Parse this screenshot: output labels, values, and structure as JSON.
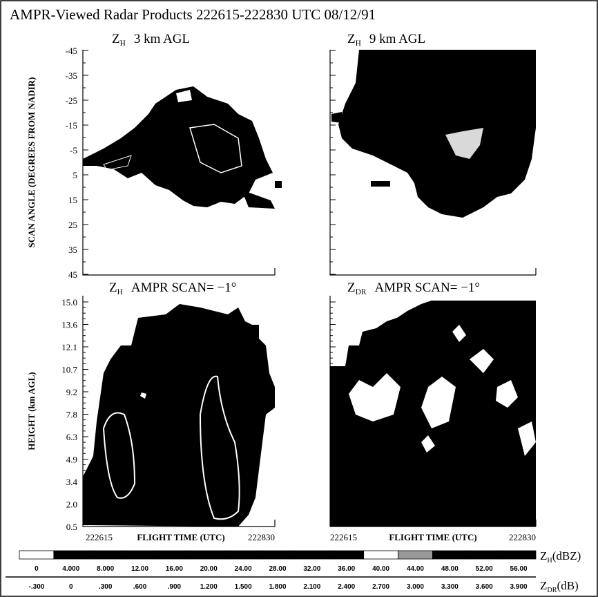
{
  "title": "AMPR-Viewed Radar Products  222615-222830 UTC  08/12/91",
  "panels": [
    {
      "symbol": "Z",
      "subscript": "H",
      "text": "3 km AGL"
    },
    {
      "symbol": "Z",
      "subscript": "H",
      "text": "9 km AGL"
    },
    {
      "symbol": "Z",
      "subscript": "H",
      "text": "AMPR SCAN= −1°"
    },
    {
      "symbol": "Z",
      "subscript": "DR",
      "text": "AMPR SCAN= −1°"
    }
  ],
  "scan_axis": {
    "label": "SCAN ANGLE  (DEGREES FROM NADIR)",
    "ticks": [
      "-45",
      "-35",
      "-25",
      "-15",
      "-5",
      "5",
      "15",
      "25",
      "35",
      "45"
    ]
  },
  "height_axis": {
    "label": "HEIGHT  (km AGL)",
    "ticks": [
      "15.0",
      "13.6",
      "12.1",
      "10.7",
      "9.2",
      "7.8",
      "6.3",
      "4.9",
      "3.4",
      "2.0",
      "0.5"
    ]
  },
  "time_axis": {
    "start": "222615",
    "label": "FLIGHT TIME  (UTC)",
    "end": "222830"
  },
  "colorbar": {
    "zh_label": {
      "symbol": "Z",
      "subscript": "H",
      "unit": "(dBZ)"
    },
    "zdr_label": {
      "symbol": "Z",
      "subscript": "DR",
      "unit": "(dB)"
    },
    "zh_ticks": [
      "0",
      "4.000",
      "8.000",
      "12.00",
      "16.00",
      "20.00",
      "24.00",
      "28.00",
      "32.00",
      "36.00",
      "40.00",
      "44.00",
      "48.00",
      "52.00",
      "56.00"
    ],
    "zdr_ticks": [
      "-.300",
      "0",
      ".300",
      ".600",
      ".900",
      "1.200",
      "1.500",
      "1.800",
      "2.100",
      "2.400",
      "2.700",
      "3.000",
      "3.300",
      "3.600",
      "3.900"
    ]
  }
}
